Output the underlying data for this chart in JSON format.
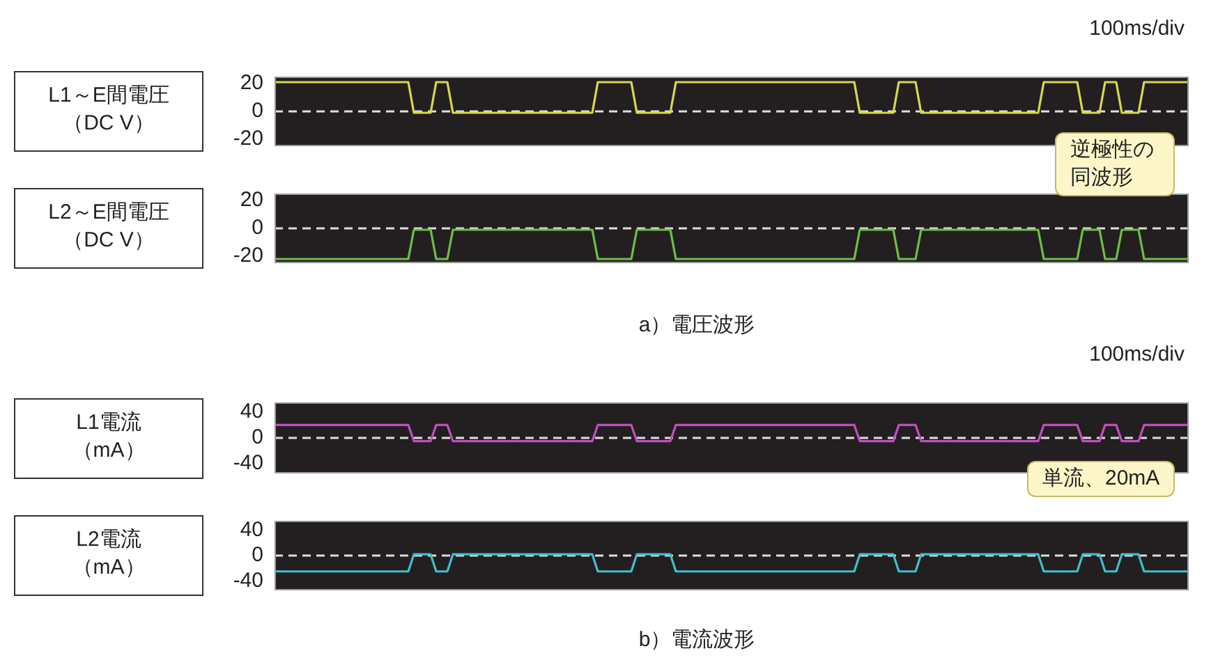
{
  "chart_data": [
    {
      "type": "line",
      "ylabel": "L1～E間電圧（DC V）",
      "annotations": [
        "100ms/div"
      ],
      "categories": [
        null,
        null,
        null,
        null,
        null,
        null,
        null,
        null,
        null,
        null,
        null,
        null,
        null,
        null,
        null,
        null,
        null,
        null,
        null,
        null,
        null,
        null,
        null,
        null,
        null,
        null,
        null,
        null,
        null,
        null,
        null,
        null,
        null,
        null,
        null,
        null,
        null,
        null,
        null,
        null,
        null,
        null,
        null,
        null,
        null,
        null,
        null,
        null,
        null,
        null,
        null,
        null,
        null,
        null,
        null,
        null,
        null,
        null,
        null,
        null,
        null,
        null,
        null,
        null,
        null,
        null,
        null,
        null,
        null,
        null,
        null,
        null,
        null,
        null,
        null,
        null,
        null,
        null,
        null,
        null,
        null,
        null,
        null,
        null,
        null,
        null,
        null,
        null,
        null,
        null,
        null,
        null,
        null,
        null,
        null,
        null,
        null,
        null,
        null,
        null,
        null,
        null,
        null,
        null,
        null,
        null,
        null,
        null,
        null,
        null,
        null,
        null,
        null,
        null,
        null,
        null,
        null,
        null,
        null,
        null,
        null,
        null,
        null,
        null,
        null,
        null,
        null,
        null,
        null,
        null,
        null,
        null,
        null,
        null,
        null,
        null,
        null,
        null,
        null,
        null,
        null,
        null,
        null,
        null,
        null,
        null,
        null,
        null,
        null,
        null,
        null,
        null,
        null,
        null,
        null,
        null,
        null,
        null,
        null,
        null,
        null,
        null,
        null,
        null,
        null
      ],
      "series": [
        {
          "color": "#d6d84c",
          "values": [
            21,
            21,
            21,
            21,
            21,
            21,
            21,
            21,
            21,
            21,
            21,
            21,
            21,
            21,
            21,
            21,
            21,
            21,
            21,
            21,
            21,
            21,
            21,
            21,
            21,
            -1,
            -1,
            -1,
            -1,
            21,
            21,
            21,
            -1,
            -1,
            -1,
            -1,
            -1,
            -1,
            -1,
            -1,
            -1,
            -1,
            -1,
            -1,
            -1,
            -1,
            -1,
            -1,
            -1,
            -1,
            -1,
            -1,
            -1,
            -1,
            -1,
            -1,
            -1,
            -1,
            21,
            21,
            21,
            21,
            21,
            21,
            21,
            -1,
            -1,
            -1,
            -1,
            -1,
            -1,
            -1,
            21,
            21,
            21,
            21,
            21,
            21,
            21,
            21,
            21,
            21,
            21,
            21,
            21,
            21,
            21,
            21,
            21,
            21,
            21,
            21,
            21,
            21,
            21,
            21,
            21,
            21,
            21,
            21,
            21,
            21,
            21,
            21,
            21,
            -1,
            -1,
            -1,
            -1,
            -1,
            -1,
            -1,
            21,
            21,
            21,
            21,
            -1,
            -1,
            -1,
            -1,
            -1,
            -1,
            -1,
            -1,
            -1,
            -1,
            -1,
            -1,
            -1,
            -1,
            -1,
            -1,
            -1,
            -1,
            -1,
            -1,
            -1,
            -1,
            21,
            21,
            21,
            21,
            21,
            21,
            21,
            -1,
            -1,
            -1,
            -1,
            21,
            21,
            21,
            -1,
            -1,
            -1,
            -1,
            21,
            21,
            21,
            21,
            21,
            21,
            21,
            21,
            21
          ]
        }
      ],
      "ylim": [
        -25,
        25
      ],
      "yticks": [
        -20,
        0,
        20
      ],
      "tick_labels": "y",
      "marker": "none",
      "line_style": "solid",
      "legend": false,
      "ref_lines": [
        {
          "axis": "y",
          "value": 0,
          "color": "#dddddd",
          "line_style": "dashed"
        }
      ]
    },
    {
      "type": "line",
      "ylabel": "L2～E間電圧（DC V）",
      "annotations": [
        "逆極性の同波形",
        "a）電圧波形"
      ],
      "categories": [
        null,
        null,
        null,
        null,
        null,
        null,
        null,
        null,
        null,
        null,
        null,
        null,
        null,
        null,
        null,
        null,
        null,
        null,
        null,
        null,
        null,
        null,
        null,
        null,
        null,
        null,
        null,
        null,
        null,
        null,
        null,
        null,
        null,
        null,
        null,
        null,
        null,
        null,
        null,
        null,
        null,
        null,
        null,
        null,
        null,
        null,
        null,
        null,
        null,
        null,
        null,
        null,
        null,
        null,
        null,
        null,
        null,
        null,
        null,
        null,
        null,
        null,
        null,
        null,
        null,
        null,
        null,
        null,
        null,
        null,
        null,
        null,
        null,
        null,
        null,
        null,
        null,
        null,
        null,
        null,
        null,
        null,
        null,
        null,
        null,
        null,
        null,
        null,
        null,
        null,
        null,
        null,
        null,
        null,
        null,
        null,
        null,
        null,
        null,
        null,
        null,
        null,
        null,
        null,
        null,
        null,
        null,
        null,
        null,
        null,
        null,
        null,
        null,
        null,
        null,
        null,
        null,
        null,
        null,
        null,
        null,
        null,
        null,
        null,
        null,
        null,
        null,
        null,
        null,
        null,
        null,
        null,
        null,
        null,
        null,
        null,
        null,
        null,
        null,
        null,
        null,
        null,
        null,
        null,
        null,
        null,
        null,
        null,
        null,
        null,
        null,
        null,
        null,
        null,
        null,
        null,
        null,
        null,
        null,
        null,
        null,
        null,
        null,
        null,
        null
      ],
      "series": [
        {
          "color": "#6cc046",
          "values": [
            -22,
            -22,
            -22,
            -22,
            -22,
            -22,
            -22,
            -22,
            -22,
            -22,
            -22,
            -22,
            -22,
            -22,
            -22,
            -22,
            -22,
            -22,
            -22,
            -22,
            -22,
            -22,
            -22,
            -22,
            -22,
            -1,
            -1,
            -1,
            -1,
            -22,
            -22,
            -22,
            -1,
            -1,
            -1,
            -1,
            -1,
            -1,
            -1,
            -1,
            -1,
            -1,
            -1,
            -1,
            -1,
            -1,
            -1,
            -1,
            -1,
            -1,
            -1,
            -1,
            -1,
            -1,
            -1,
            -1,
            -1,
            -1,
            -22,
            -22,
            -22,
            -22,
            -22,
            -22,
            -22,
            -1,
            -1,
            -1,
            -1,
            -1,
            -1,
            -1,
            -22,
            -22,
            -22,
            -22,
            -22,
            -22,
            -22,
            -22,
            -22,
            -22,
            -22,
            -22,
            -22,
            -22,
            -22,
            -22,
            -22,
            -22,
            -22,
            -22,
            -22,
            -22,
            -22,
            -22,
            -22,
            -22,
            -22,
            -22,
            -22,
            -22,
            -22,
            -22,
            -22,
            -1,
            -1,
            -1,
            -1,
            -1,
            -1,
            -1,
            -22,
            -22,
            -22,
            -22,
            -1,
            -1,
            -1,
            -1,
            -1,
            -1,
            -1,
            -1,
            -1,
            -1,
            -1,
            -1,
            -1,
            -1,
            -1,
            -1,
            -1,
            -1,
            -1,
            -1,
            -1,
            -1,
            -22,
            -22,
            -22,
            -22,
            -22,
            -22,
            -22,
            -1,
            -1,
            -1,
            -1,
            -22,
            -22,
            -22,
            -1,
            -1,
            -1,
            -1,
            -22,
            -22,
            -22,
            -22,
            -22,
            -22,
            -22,
            -22,
            -22
          ]
        }
      ],
      "ylim": [
        -25,
        25
      ],
      "yticks": [
        -20,
        0,
        20
      ],
      "tick_labels": "y",
      "marker": "none",
      "line_style": "solid",
      "legend": false,
      "ref_lines": [
        {
          "axis": "y",
          "value": 0,
          "color": "#dddddd",
          "line_style": "dashed"
        }
      ]
    },
    {
      "type": "line",
      "ylabel": "L1電流（mA）",
      "annotations": [
        "100ms/div",
        "単流、20mA"
      ],
      "categories": [
        null,
        null,
        null,
        null,
        null,
        null,
        null,
        null,
        null,
        null,
        null,
        null,
        null,
        null,
        null,
        null,
        null,
        null,
        null,
        null,
        null,
        null,
        null,
        null,
        null,
        null,
        null,
        null,
        null,
        null,
        null,
        null,
        null,
        null,
        null,
        null,
        null,
        null,
        null,
        null,
        null,
        null,
        null,
        null,
        null,
        null,
        null,
        null,
        null,
        null,
        null,
        null,
        null,
        null,
        null,
        null,
        null,
        null,
        null,
        null,
        null,
        null,
        null,
        null,
        null,
        null,
        null,
        null,
        null,
        null,
        null,
        null,
        null,
        null,
        null,
        null,
        null,
        null,
        null,
        null,
        null,
        null,
        null,
        null,
        null,
        null,
        null,
        null,
        null,
        null,
        null,
        null,
        null,
        null,
        null,
        null,
        null,
        null,
        null,
        null,
        null,
        null,
        null,
        null,
        null,
        null,
        null,
        null,
        null,
        null,
        null,
        null,
        null,
        null,
        null,
        null,
        null,
        null,
        null,
        null,
        null,
        null,
        null,
        null,
        null,
        null,
        null,
        null,
        null,
        null,
        null,
        null,
        null,
        null,
        null,
        null,
        null,
        null,
        null,
        null,
        null,
        null,
        null,
        null,
        null,
        null,
        null,
        null,
        null,
        null,
        null,
        null,
        null,
        null,
        null,
        null,
        null,
        null,
        null,
        null,
        null,
        null,
        null,
        null,
        null
      ],
      "series": [
        {
          "color": "#c04fc0",
          "values": [
            20,
            20,
            20,
            20,
            20,
            20,
            20,
            20,
            20,
            20,
            20,
            20,
            20,
            20,
            20,
            20,
            20,
            20,
            20,
            20,
            20,
            20,
            20,
            20,
            20,
            -5,
            -5,
            -5,
            -5,
            20,
            20,
            20,
            -5,
            -5,
            -5,
            -5,
            -5,
            -5,
            -5,
            -5,
            -5,
            -5,
            -5,
            -5,
            -5,
            -5,
            -5,
            -5,
            -5,
            -5,
            -5,
            -5,
            -5,
            -5,
            -5,
            -5,
            -5,
            -5,
            20,
            20,
            20,
            20,
            20,
            20,
            20,
            -5,
            -5,
            -5,
            -5,
            -5,
            -5,
            -5,
            20,
            20,
            20,
            20,
            20,
            20,
            20,
            20,
            20,
            20,
            20,
            20,
            20,
            20,
            20,
            20,
            20,
            20,
            20,
            20,
            20,
            20,
            20,
            20,
            20,
            20,
            20,
            20,
            20,
            20,
            20,
            20,
            20,
            -5,
            -5,
            -5,
            -5,
            -5,
            -5,
            -5,
            20,
            20,
            20,
            20,
            -5,
            -5,
            -5,
            -5,
            -5,
            -5,
            -5,
            -5,
            -5,
            -5,
            -5,
            -5,
            -5,
            -5,
            -5,
            -5,
            -5,
            -5,
            -5,
            -5,
            -5,
            -5,
            20,
            20,
            20,
            20,
            20,
            20,
            20,
            -5,
            -5,
            -5,
            -5,
            20,
            20,
            20,
            -5,
            -5,
            -5,
            -5,
            20,
            20,
            20,
            20,
            20,
            20,
            20,
            20,
            20
          ]
        }
      ],
      "ylim": [
        -55,
        55
      ],
      "yticks": [
        -40,
        0,
        40
      ],
      "tick_labels": "y",
      "marker": "none",
      "line_style": "solid",
      "legend": false,
      "ref_lines": [
        {
          "axis": "y",
          "value": 0,
          "color": "#dddddd",
          "line_style": "dashed"
        }
      ]
    },
    {
      "type": "line",
      "ylabel": "L2電流（mA）",
      "annotations": [
        "b）電流波形"
      ],
      "categories": [
        null,
        null,
        null,
        null,
        null,
        null,
        null,
        null,
        null,
        null,
        null,
        null,
        null,
        null,
        null,
        null,
        null,
        null,
        null,
        null,
        null,
        null,
        null,
        null,
        null,
        null,
        null,
        null,
        null,
        null,
        null,
        null,
        null,
        null,
        null,
        null,
        null,
        null,
        null,
        null,
        null,
        null,
        null,
        null,
        null,
        null,
        null,
        null,
        null,
        null,
        null,
        null,
        null,
        null,
        null,
        null,
        null,
        null,
        null,
        null,
        null,
        null,
        null,
        null,
        null,
        null,
        null,
        null,
        null,
        null,
        null,
        null,
        null,
        null,
        null,
        null,
        null,
        null,
        null,
        null,
        null,
        null,
        null,
        null,
        null,
        null,
        null,
        null,
        null,
        null,
        null,
        null,
        null,
        null,
        null,
        null,
        null,
        null,
        null,
        null,
        null,
        null,
        null,
        null,
        null,
        null,
        null,
        null,
        null,
        null,
        null,
        null,
        null,
        null,
        null,
        null,
        null,
        null,
        null,
        null,
        null,
        null,
        null,
        null,
        null,
        null,
        null,
        null,
        null,
        null,
        null,
        null,
        null,
        null,
        null,
        null,
        null,
        null,
        null,
        null,
        null,
        null,
        null,
        null,
        null,
        null,
        null,
        null,
        null,
        null,
        null,
        null,
        null,
        null,
        null,
        null,
        null,
        null,
        null,
        null,
        null,
        null,
        null,
        null,
        null
      ],
      "series": [
        {
          "color": "#3fbfcf",
          "values": [
            -25,
            -25,
            -25,
            -25,
            -25,
            -25,
            -25,
            -25,
            -25,
            -25,
            -25,
            -25,
            -25,
            -25,
            -25,
            -25,
            -25,
            -25,
            -25,
            -25,
            -25,
            -25,
            -25,
            -25,
            -25,
            2,
            2,
            2,
            2,
            -25,
            -25,
            -25,
            2,
            2,
            2,
            2,
            2,
            2,
            2,
            2,
            2,
            2,
            2,
            2,
            2,
            2,
            2,
            2,
            2,
            2,
            2,
            2,
            2,
            2,
            2,
            2,
            2,
            2,
            -25,
            -25,
            -25,
            -25,
            -25,
            -25,
            -25,
            2,
            2,
            2,
            2,
            2,
            2,
            2,
            -25,
            -25,
            -25,
            -25,
            -25,
            -25,
            -25,
            -25,
            -25,
            -25,
            -25,
            -25,
            -25,
            -25,
            -25,
            -25,
            -25,
            -25,
            -25,
            -25,
            -25,
            -25,
            -25,
            -25,
            -25,
            -25,
            -25,
            -25,
            -25,
            -25,
            -25,
            -25,
            -25,
            2,
            2,
            2,
            2,
            2,
            2,
            2,
            -25,
            -25,
            -25,
            -25,
            2,
            2,
            2,
            2,
            2,
            2,
            2,
            2,
            2,
            2,
            2,
            2,
            2,
            2,
            2,
            2,
            2,
            2,
            2,
            2,
            2,
            2,
            -25,
            -25,
            -25,
            -25,
            -25,
            -25,
            -25,
            2,
            2,
            2,
            2,
            -25,
            -25,
            -25,
            2,
            2,
            2,
            2,
            -25,
            -25,
            -25,
            -25,
            -25,
            -25,
            -25,
            -25,
            -25
          ]
        }
      ],
      "ylim": [
        -55,
        55
      ],
      "yticks": [
        -40,
        0,
        40
      ],
      "tick_labels": "y",
      "marker": "none",
      "line_style": "solid",
      "legend": false,
      "ref_lines": [
        {
          "axis": "y",
          "value": 0,
          "color": "#dddddd",
          "line_style": "dashed"
        }
      ]
    }
  ]
}
